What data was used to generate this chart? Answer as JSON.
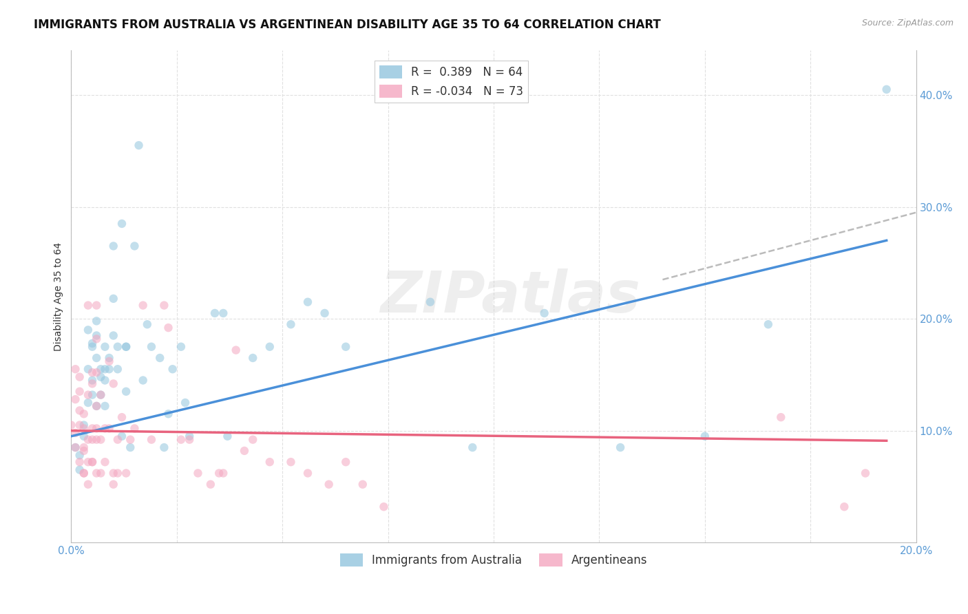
{
  "title": "IMMIGRANTS FROM AUSTRALIA VS ARGENTINEAN DISABILITY AGE 35 TO 64 CORRELATION CHART",
  "source": "Source: ZipAtlas.com",
  "ylabel": "Disability Age 35 to 64",
  "legend_entries": [
    {
      "label": "R =  0.389   N = 64",
      "color": "#92c5de"
    },
    {
      "label": "R = -0.034   N = 73",
      "color": "#f4a6c0"
    }
  ],
  "legend_bottom": [
    "Immigrants from Australia",
    "Argentineans"
  ],
  "blue_scatter": [
    [
      0.001,
      0.085
    ],
    [
      0.002,
      0.078
    ],
    [
      0.002,
      0.065
    ],
    [
      0.003,
      0.095
    ],
    [
      0.003,
      0.105
    ],
    [
      0.004,
      0.155
    ],
    [
      0.004,
      0.125
    ],
    [
      0.004,
      0.19
    ],
    [
      0.005,
      0.145
    ],
    [
      0.005,
      0.178
    ],
    [
      0.005,
      0.175
    ],
    [
      0.005,
      0.132
    ],
    [
      0.006,
      0.122
    ],
    [
      0.006,
      0.185
    ],
    [
      0.006,
      0.165
    ],
    [
      0.006,
      0.198
    ],
    [
      0.007,
      0.148
    ],
    [
      0.007,
      0.155
    ],
    [
      0.007,
      0.132
    ],
    [
      0.008,
      0.175
    ],
    [
      0.008,
      0.155
    ],
    [
      0.008,
      0.145
    ],
    [
      0.008,
      0.122
    ],
    [
      0.009,
      0.165
    ],
    [
      0.009,
      0.155
    ],
    [
      0.01,
      0.265
    ],
    [
      0.01,
      0.218
    ],
    [
      0.01,
      0.185
    ],
    [
      0.011,
      0.175
    ],
    [
      0.011,
      0.155
    ],
    [
      0.012,
      0.285
    ],
    [
      0.012,
      0.095
    ],
    [
      0.013,
      0.175
    ],
    [
      0.013,
      0.135
    ],
    [
      0.013,
      0.175
    ],
    [
      0.014,
      0.085
    ],
    [
      0.015,
      0.265
    ],
    [
      0.016,
      0.355
    ],
    [
      0.017,
      0.145
    ],
    [
      0.018,
      0.195
    ],
    [
      0.019,
      0.175
    ],
    [
      0.021,
      0.165
    ],
    [
      0.022,
      0.085
    ],
    [
      0.023,
      0.115
    ],
    [
      0.024,
      0.155
    ],
    [
      0.026,
      0.175
    ],
    [
      0.027,
      0.125
    ],
    [
      0.028,
      0.095
    ],
    [
      0.034,
      0.205
    ],
    [
      0.036,
      0.205
    ],
    [
      0.037,
      0.095
    ],
    [
      0.043,
      0.165
    ],
    [
      0.047,
      0.175
    ],
    [
      0.052,
      0.195
    ],
    [
      0.056,
      0.215
    ],
    [
      0.06,
      0.205
    ],
    [
      0.065,
      0.175
    ],
    [
      0.085,
      0.215
    ],
    [
      0.095,
      0.085
    ],
    [
      0.112,
      0.205
    ],
    [
      0.13,
      0.085
    ],
    [
      0.15,
      0.095
    ],
    [
      0.165,
      0.195
    ],
    [
      0.193,
      0.405
    ]
  ],
  "pink_scatter": [
    [
      0.0,
      0.105
    ],
    [
      0.001,
      0.128
    ],
    [
      0.001,
      0.098
    ],
    [
      0.001,
      0.085
    ],
    [
      0.001,
      0.155
    ],
    [
      0.002,
      0.148
    ],
    [
      0.002,
      0.118
    ],
    [
      0.002,
      0.072
    ],
    [
      0.002,
      0.135
    ],
    [
      0.002,
      0.105
    ],
    [
      0.003,
      0.082
    ],
    [
      0.003,
      0.062
    ],
    [
      0.003,
      0.115
    ],
    [
      0.003,
      0.085
    ],
    [
      0.003,
      0.062
    ],
    [
      0.003,
      0.102
    ],
    [
      0.004,
      0.132
    ],
    [
      0.004,
      0.092
    ],
    [
      0.004,
      0.072
    ],
    [
      0.004,
      0.052
    ],
    [
      0.004,
      0.212
    ],
    [
      0.005,
      0.142
    ],
    [
      0.005,
      0.092
    ],
    [
      0.005,
      0.072
    ],
    [
      0.005,
      0.152
    ],
    [
      0.005,
      0.102
    ],
    [
      0.005,
      0.072
    ],
    [
      0.006,
      0.122
    ],
    [
      0.006,
      0.092
    ],
    [
      0.006,
      0.062
    ],
    [
      0.006,
      0.212
    ],
    [
      0.006,
      0.182
    ],
    [
      0.006,
      0.152
    ],
    [
      0.006,
      0.102
    ],
    [
      0.007,
      0.132
    ],
    [
      0.007,
      0.092
    ],
    [
      0.007,
      0.062
    ],
    [
      0.008,
      0.102
    ],
    [
      0.008,
      0.072
    ],
    [
      0.009,
      0.162
    ],
    [
      0.009,
      0.102
    ],
    [
      0.01,
      0.142
    ],
    [
      0.01,
      0.062
    ],
    [
      0.01,
      0.052
    ],
    [
      0.011,
      0.092
    ],
    [
      0.011,
      0.062
    ],
    [
      0.012,
      0.112
    ],
    [
      0.013,
      0.062
    ],
    [
      0.014,
      0.092
    ],
    [
      0.015,
      0.102
    ],
    [
      0.017,
      0.212
    ],
    [
      0.019,
      0.092
    ],
    [
      0.022,
      0.212
    ],
    [
      0.023,
      0.192
    ],
    [
      0.026,
      0.092
    ],
    [
      0.028,
      0.092
    ],
    [
      0.03,
      0.062
    ],
    [
      0.033,
      0.052
    ],
    [
      0.035,
      0.062
    ],
    [
      0.036,
      0.062
    ],
    [
      0.039,
      0.172
    ],
    [
      0.041,
      0.082
    ],
    [
      0.043,
      0.092
    ],
    [
      0.047,
      0.072
    ],
    [
      0.052,
      0.072
    ],
    [
      0.056,
      0.062
    ],
    [
      0.061,
      0.052
    ],
    [
      0.065,
      0.072
    ],
    [
      0.069,
      0.052
    ],
    [
      0.074,
      0.032
    ],
    [
      0.168,
      0.112
    ],
    [
      0.183,
      0.032
    ],
    [
      0.188,
      0.062
    ]
  ],
  "blue_line": [
    [
      0.0,
      0.095
    ],
    [
      0.193,
      0.27
    ]
  ],
  "pink_line": [
    [
      0.0,
      0.1
    ],
    [
      0.193,
      0.091
    ]
  ],
  "gray_dashed_line": [
    [
      0.14,
      0.235
    ],
    [
      0.2,
      0.295
    ]
  ],
  "scatter_alpha": 0.55,
  "scatter_size": 80,
  "blue_color": "#92c5de",
  "pink_color": "#f4a6c0",
  "blue_line_color": "#4a90d9",
  "pink_line_color": "#e8637e",
  "gray_dash_color": "#bbbbbb",
  "background_color": "#ffffff",
  "grid_color": "#e0e0e0",
  "title_fontsize": 12,
  "axis_label_fontsize": 10,
  "tick_fontsize": 11,
  "watermark": "ZIPatlas",
  "watermark_color": "#d0d0d0",
  "xlim": [
    0.0,
    0.2
  ],
  "ylim": [
    0.0,
    0.44
  ],
  "yticks": [
    0.1,
    0.2,
    0.3,
    0.4
  ],
  "ytick_labels": [
    "10.0%",
    "20.0%",
    "30.0%",
    "40.0%"
  ],
  "xtick_labels_show": [
    "0.0%",
    "20.0%"
  ],
  "xtick_positions_show": [
    0.0,
    0.2
  ],
  "xtick_minor_positions": [
    0.025,
    0.05,
    0.075,
    0.1,
    0.125,
    0.15,
    0.175
  ]
}
